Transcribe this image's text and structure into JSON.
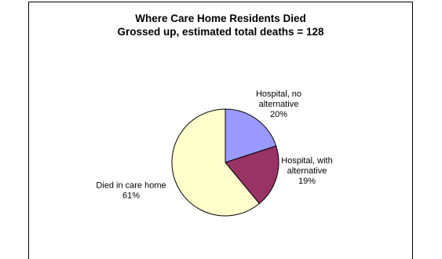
{
  "chart_data": {
    "type": "pie",
    "title": "Where Care Home Residents Died",
    "subtitle": "Grossed up, estimated total deaths = 128",
    "slices": [
      {
        "label_lines": [
          "Hospital, no",
          "alternative"
        ],
        "label": "Hospital, no alternative",
        "value": 20,
        "percent_label": "20%",
        "color": "#9999ff"
      },
      {
        "label_lines": [
          "Hospital, with",
          "alternative"
        ],
        "label": "Hospital, with alternative",
        "value": 19,
        "percent_label": "19%",
        "color": "#993366"
      },
      {
        "label_lines": [
          "Died in care home"
        ],
        "label": "Died in care home",
        "value": 61,
        "percent_label": "61%",
        "color": "#ffffcc"
      }
    ],
    "legend": "none"
  }
}
